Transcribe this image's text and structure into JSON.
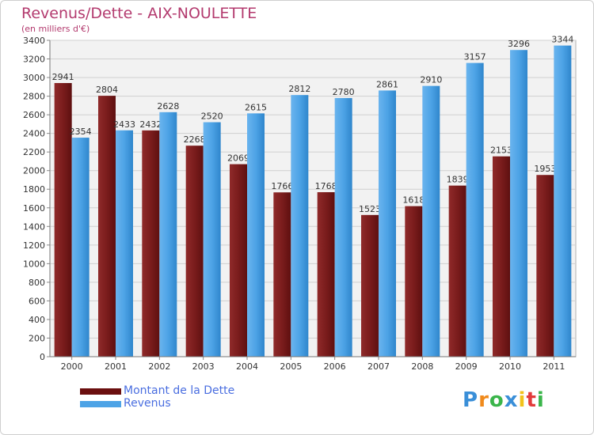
{
  "header": {
    "title": "Revenus/Dette - AIX-NOULETTE",
    "subtitle": "(en milliers d'€)"
  },
  "chart_data": {
    "type": "bar",
    "title": "Revenus/Dette - AIX-NOULETTE",
    "subtitle": "(en milliers d'€)",
    "xlabel": "",
    "ylabel": "",
    "ylim": [
      0,
      3400
    ],
    "yticks": [
      0,
      200,
      400,
      600,
      800,
      1000,
      1200,
      1400,
      1600,
      1800,
      2000,
      2200,
      2400,
      2600,
      2800,
      3000,
      3200,
      3400
    ],
    "grid": true,
    "legend_position": "bottom-left",
    "categories": [
      "2000",
      "2001",
      "2002",
      "2003",
      "2004",
      "2005",
      "2006",
      "2007",
      "2008",
      "2009",
      "2010",
      "2011"
    ],
    "series": [
      {
        "name": "Montant de la Dette",
        "color": "#7a1c1c",
        "values": [
          2941,
          2804,
          2432,
          2268,
          2069,
          1766,
          1768,
          1523,
          1618,
          1839,
          2153,
          1953
        ]
      },
      {
        "name": "Revenus",
        "color": "#4da3e6",
        "values": [
          2354,
          2433,
          2628,
          2520,
          2615,
          2812,
          2780,
          2861,
          2910,
          3157,
          3296,
          3344
        ]
      }
    ]
  },
  "legend": {
    "items": [
      {
        "label": "Montant de la Dette",
        "color": "#6b0f0f"
      },
      {
        "label": "Revenus",
        "color": "#4da3e6"
      }
    ]
  },
  "logo": {
    "letters": [
      {
        "char": "P",
        "color": "#3a8fd8"
      },
      {
        "char": "r",
        "color": "#f08a1c"
      },
      {
        "char": "o",
        "color": "#3ab54a"
      },
      {
        "char": "x",
        "color": "#3a8fd8"
      },
      {
        "char": "i",
        "color": "#f2c21b"
      },
      {
        "char": "t",
        "color": "#e23b3b"
      },
      {
        "char": "i",
        "color": "#3ab54a"
      }
    ]
  }
}
